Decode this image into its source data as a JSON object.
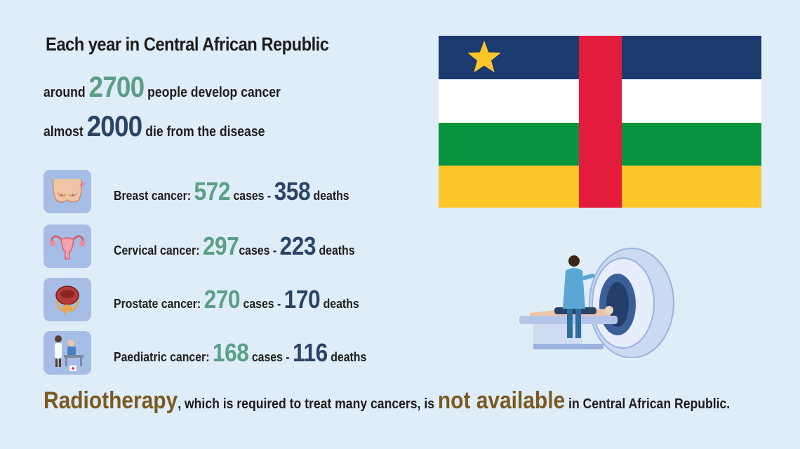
{
  "title": "Each year in Central African Republic",
  "summary": {
    "develop": {
      "prefix": "around",
      "number": "2700",
      "suffix": "people develop cancer"
    },
    "die": {
      "prefix": "almost",
      "number": "2000",
      "suffix": "die from the disease"
    }
  },
  "cancers": [
    {
      "name": "Breast cancer:",
      "cases": "572",
      "cases_label": "cases -",
      "deaths": "358",
      "deaths_label": "deaths",
      "icon": "breast-icon"
    },
    {
      "name": "Cervical cancer:",
      "cases": "297",
      "cases_label": "cases -",
      "deaths": "223",
      "deaths_label": "deaths",
      "icon": "uterus-icon"
    },
    {
      "name": "Prostate cancer:",
      "cases": "270",
      "cases_label": "cases -",
      "deaths": "170",
      "deaths_label": "deaths",
      "icon": "prostate-icon"
    },
    {
      "name": "Paediatric cancer:",
      "cases": "168",
      "cases_label": "cases -",
      "deaths": "116",
      "deaths_label": "deaths",
      "icon": "child-patient-icon"
    }
  ],
  "footer": {
    "word1": "Radiotherapy",
    "middle": ", which is required to treat many cancers, is",
    "word2": "not available",
    "end": "in Central African Republic."
  },
  "colors": {
    "background": "#deedf8",
    "cases": "#5c9e86",
    "deaths": "#2a4466",
    "highlight": "#7a5a22",
    "icon_bg": "#a6bde6",
    "flag_blue": "#1b3a6e",
    "flag_white": "#ffffff",
    "flag_green": "#08943f",
    "flag_yellow": "#fcc62a",
    "flag_red": "#e31b3c",
    "flag_star": "#fcc62a"
  }
}
